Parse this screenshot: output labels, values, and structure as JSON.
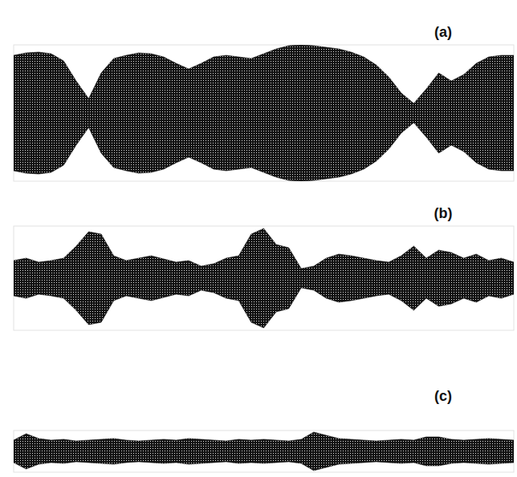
{
  "chart_data": [
    {
      "type": "area",
      "title": "(a)",
      "x": [
        0,
        2.5,
        5,
        7.5,
        10,
        12.5,
        15,
        17.5,
        20,
        22.5,
        25,
        27.5,
        30,
        32.5,
        35,
        37.5,
        40,
        42.5,
        45,
        47.5,
        50,
        52.5,
        55,
        57.5,
        60,
        62.5,
        65,
        67.5,
        70,
        72.5,
        75,
        77.5,
        80,
        82.5,
        85,
        87.5,
        90,
        92.5,
        95,
        97.5,
        100
      ],
      "values": [
        72,
        75,
        76,
        74,
        65,
        40,
        18,
        50,
        68,
        72,
        75,
        74,
        70,
        62,
        55,
        62,
        70,
        72,
        70,
        68,
        74,
        80,
        84,
        85,
        84,
        82,
        80,
        76,
        70,
        60,
        45,
        25,
        12,
        30,
        50,
        40,
        48,
        62,
        70,
        72,
        72
      ],
      "xlim": [
        0,
        100
      ],
      "ylim": [
        -85,
        85
      ],
      "tick_labels": false,
      "color": "#111111"
    },
    {
      "type": "area",
      "title": "(b)",
      "x": [
        0,
        2.5,
        5,
        7.5,
        10,
        12.5,
        15,
        17.5,
        20,
        22.5,
        25,
        27.5,
        30,
        32.5,
        35,
        37.5,
        40,
        42.5,
        45,
        47.5,
        50,
        52.5,
        55,
        57.5,
        60,
        62.5,
        65,
        67.5,
        70,
        72.5,
        75,
        77.5,
        80,
        82.5,
        85,
        87.5,
        90,
        92.5,
        95,
        97.5,
        100
      ],
      "values": [
        22,
        25,
        20,
        22,
        25,
        40,
        58,
        55,
        28,
        22,
        25,
        28,
        24,
        20,
        22,
        15,
        18,
        25,
        28,
        55,
        62,
        42,
        38,
        12,
        15,
        25,
        30,
        28,
        25,
        22,
        20,
        28,
        40,
        25,
        35,
        32,
        25,
        30,
        22,
        25,
        20
      ],
      "xlim": [
        0,
        100
      ],
      "ylim": [
        -65,
        65
      ],
      "tick_labels": false,
      "color": "#111111"
    },
    {
      "type": "area",
      "title": "(c)",
      "x": [
        0,
        2.5,
        5,
        7.5,
        10,
        12.5,
        15,
        17.5,
        20,
        22.5,
        25,
        27.5,
        30,
        32.5,
        35,
        37.5,
        40,
        42.5,
        45,
        47.5,
        50,
        52.5,
        55,
        57.5,
        60,
        62.5,
        65,
        67.5,
        70,
        72.5,
        75,
        77.5,
        80,
        82.5,
        85,
        87.5,
        90,
        92.5,
        95,
        97.5,
        100
      ],
      "values": [
        14,
        22,
        16,
        14,
        15,
        13,
        14,
        15,
        16,
        14,
        13,
        14,
        15,
        14,
        16,
        15,
        14,
        13,
        15,
        14,
        15,
        14,
        13,
        15,
        24,
        20,
        16,
        15,
        14,
        13,
        14,
        15,
        14,
        18,
        18,
        15,
        14,
        15,
        16,
        15,
        14
      ],
      "xlim": [
        0,
        100
      ],
      "ylim": [
        -26,
        26
      ],
      "tick_labels": false,
      "color": "#111111"
    }
  ]
}
